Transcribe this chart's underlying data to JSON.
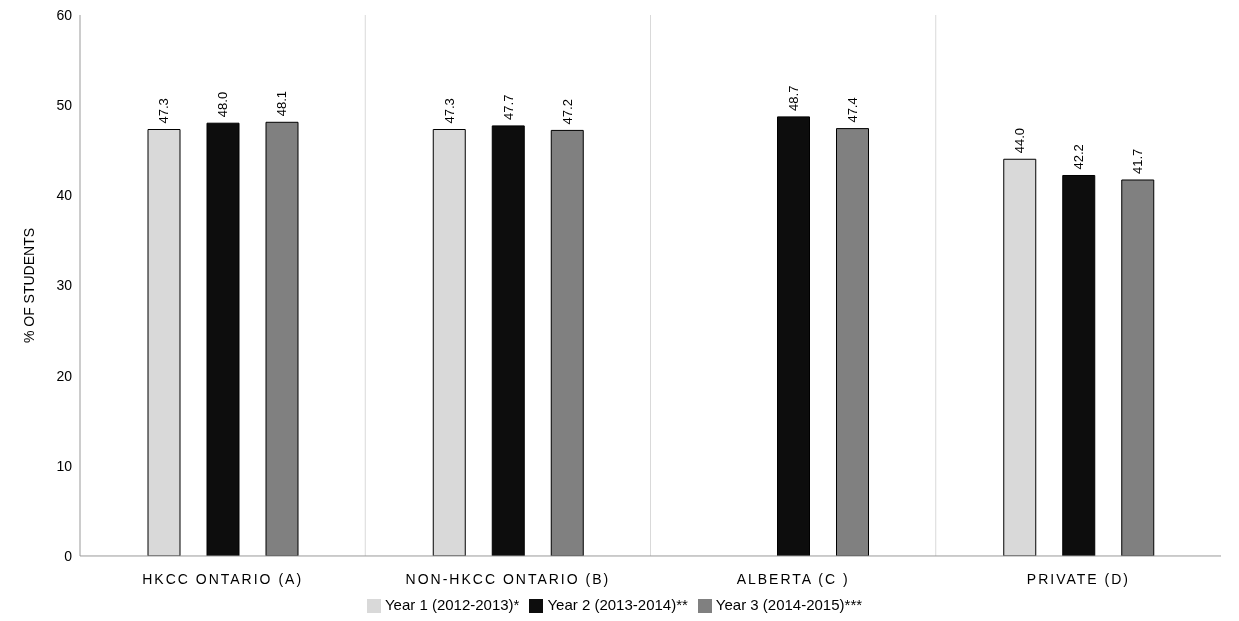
{
  "chart_data": {
    "type": "bar",
    "ylabel": "% OF STUDENTS",
    "categories": [
      "HKCC ONTARIO (A)",
      "NON-HKCC ONTARIO (B)",
      "ALBERTA (C )",
      "PRIVATE (D)"
    ],
    "series": [
      {
        "name": "Year 1 (2012-2013)*",
        "color": "#d9d9d9",
        "values": [
          47.3,
          47.3,
          null,
          44.0
        ],
        "value_labels": [
          "47.3",
          "47.3",
          null,
          "44.0"
        ]
      },
      {
        "name": "Year 2 (2013-2014)**",
        "color": "#0d0d0d",
        "values": [
          48.0,
          47.7,
          48.7,
          42.2
        ],
        "value_labels": [
          "48.0",
          "47.7",
          "48.7",
          "42.2"
        ]
      },
      {
        "name": "Year 3 (2014-2015)***",
        "color": "#808080",
        "values": [
          48.1,
          47.2,
          47.4,
          41.7
        ],
        "value_labels": [
          "48.1",
          "47.2",
          "47.4",
          "41.7"
        ]
      }
    ],
    "ylim": [
      0,
      60
    ],
    "yticks": [
      0,
      10,
      20,
      30,
      40,
      50,
      60
    ],
    "grid": "x",
    "legend": "bottom"
  }
}
